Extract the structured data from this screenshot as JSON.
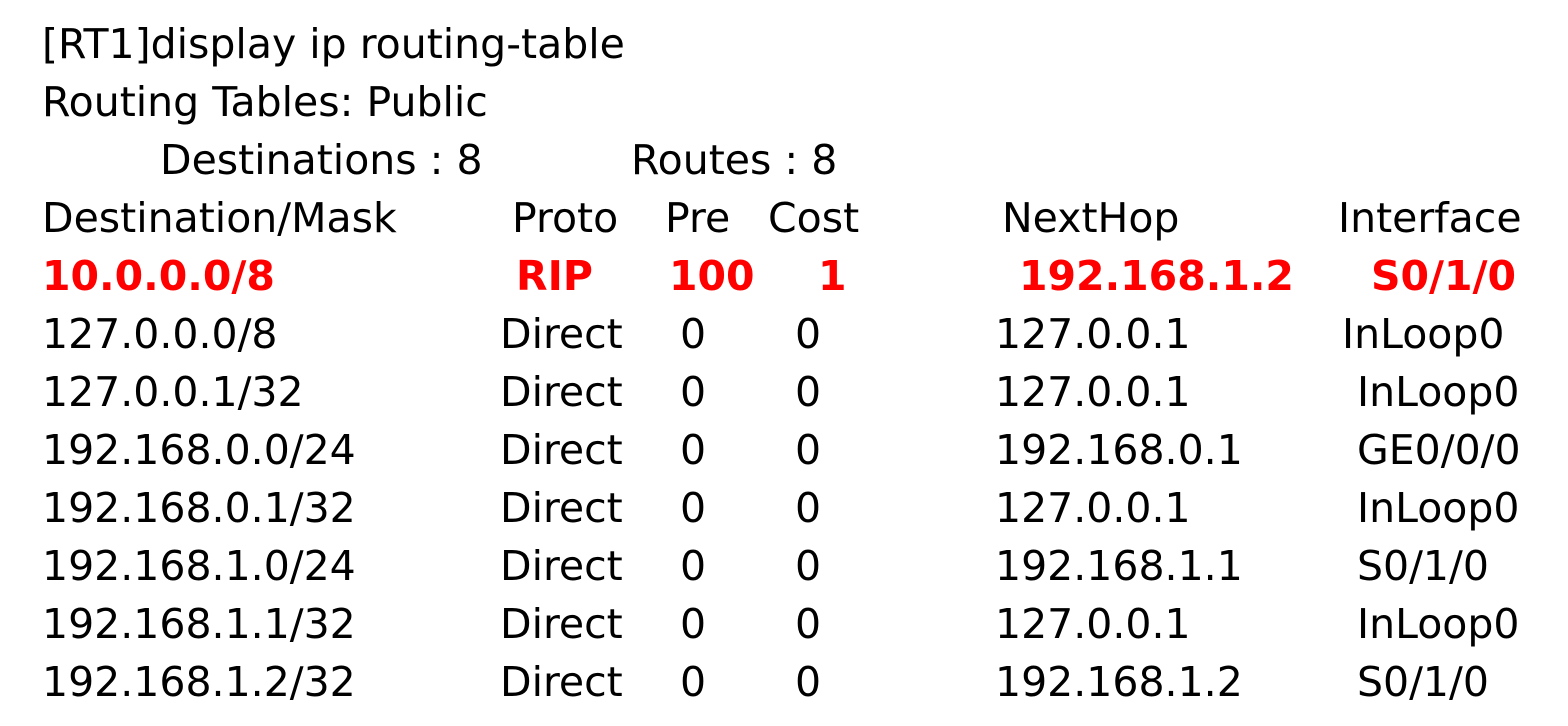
{
  "command": "[RT1]display ip routing-table",
  "table_name": "Routing Tables: Public",
  "summary": {
    "destinations_label": "Destinations : 8",
    "routes_label": "Routes : 8"
  },
  "columns": {
    "destination": "Destination/Mask",
    "proto": "Proto",
    "pre": "Pre",
    "cost": "Cost",
    "nexthop": "NextHop",
    "interface": "Interface"
  },
  "colors": {
    "highlight": "#ff0000",
    "text": "#000000",
    "background": "#ffffff"
  },
  "routes": [
    {
      "destination": "10.0.0.0/8",
      "proto": "RIP",
      "pre": "100",
      "cost": "1",
      "nexthop": "192.168.1.2",
      "interface": "S0/1/0",
      "highlight": true
    },
    {
      "destination": "127.0.0.0/8",
      "proto": "Direct",
      "pre": "0",
      "cost": "0",
      "nexthop": "127.0.0.1",
      "interface": "InLoop0",
      "highlight": false
    },
    {
      "destination": "127.0.0.1/32",
      "proto": "Direct",
      "pre": "0",
      "cost": "0",
      "nexthop": "127.0.0.1",
      "interface": "InLoop0",
      "highlight": false
    },
    {
      "destination": "192.168.0.0/24",
      "proto": "Direct",
      "pre": "0",
      "cost": "0",
      "nexthop": "192.168.0.1",
      "interface": "GE0/0/0",
      "highlight": false
    },
    {
      "destination": "192.168.0.1/32",
      "proto": "Direct",
      "pre": "0",
      "cost": "0",
      "nexthop": "127.0.0.1",
      "interface": "InLoop0",
      "highlight": false
    },
    {
      "destination": "192.168.1.0/24",
      "proto": "Direct",
      "pre": "0",
      "cost": "0",
      "nexthop": "192.168.1.1",
      "interface": "S0/1/0",
      "highlight": false
    },
    {
      "destination": "192.168.1.1/32",
      "proto": "Direct",
      "pre": "0",
      "cost": "0",
      "nexthop": "127.0.0.1",
      "interface": "InLoop0",
      "highlight": false
    },
    {
      "destination": "192.168.1.2/32",
      "proto": "Direct",
      "pre": "0",
      "cost": "0",
      "nexthop": "192.168.1.2",
      "interface": "S0/1/0",
      "highlight": false
    }
  ]
}
